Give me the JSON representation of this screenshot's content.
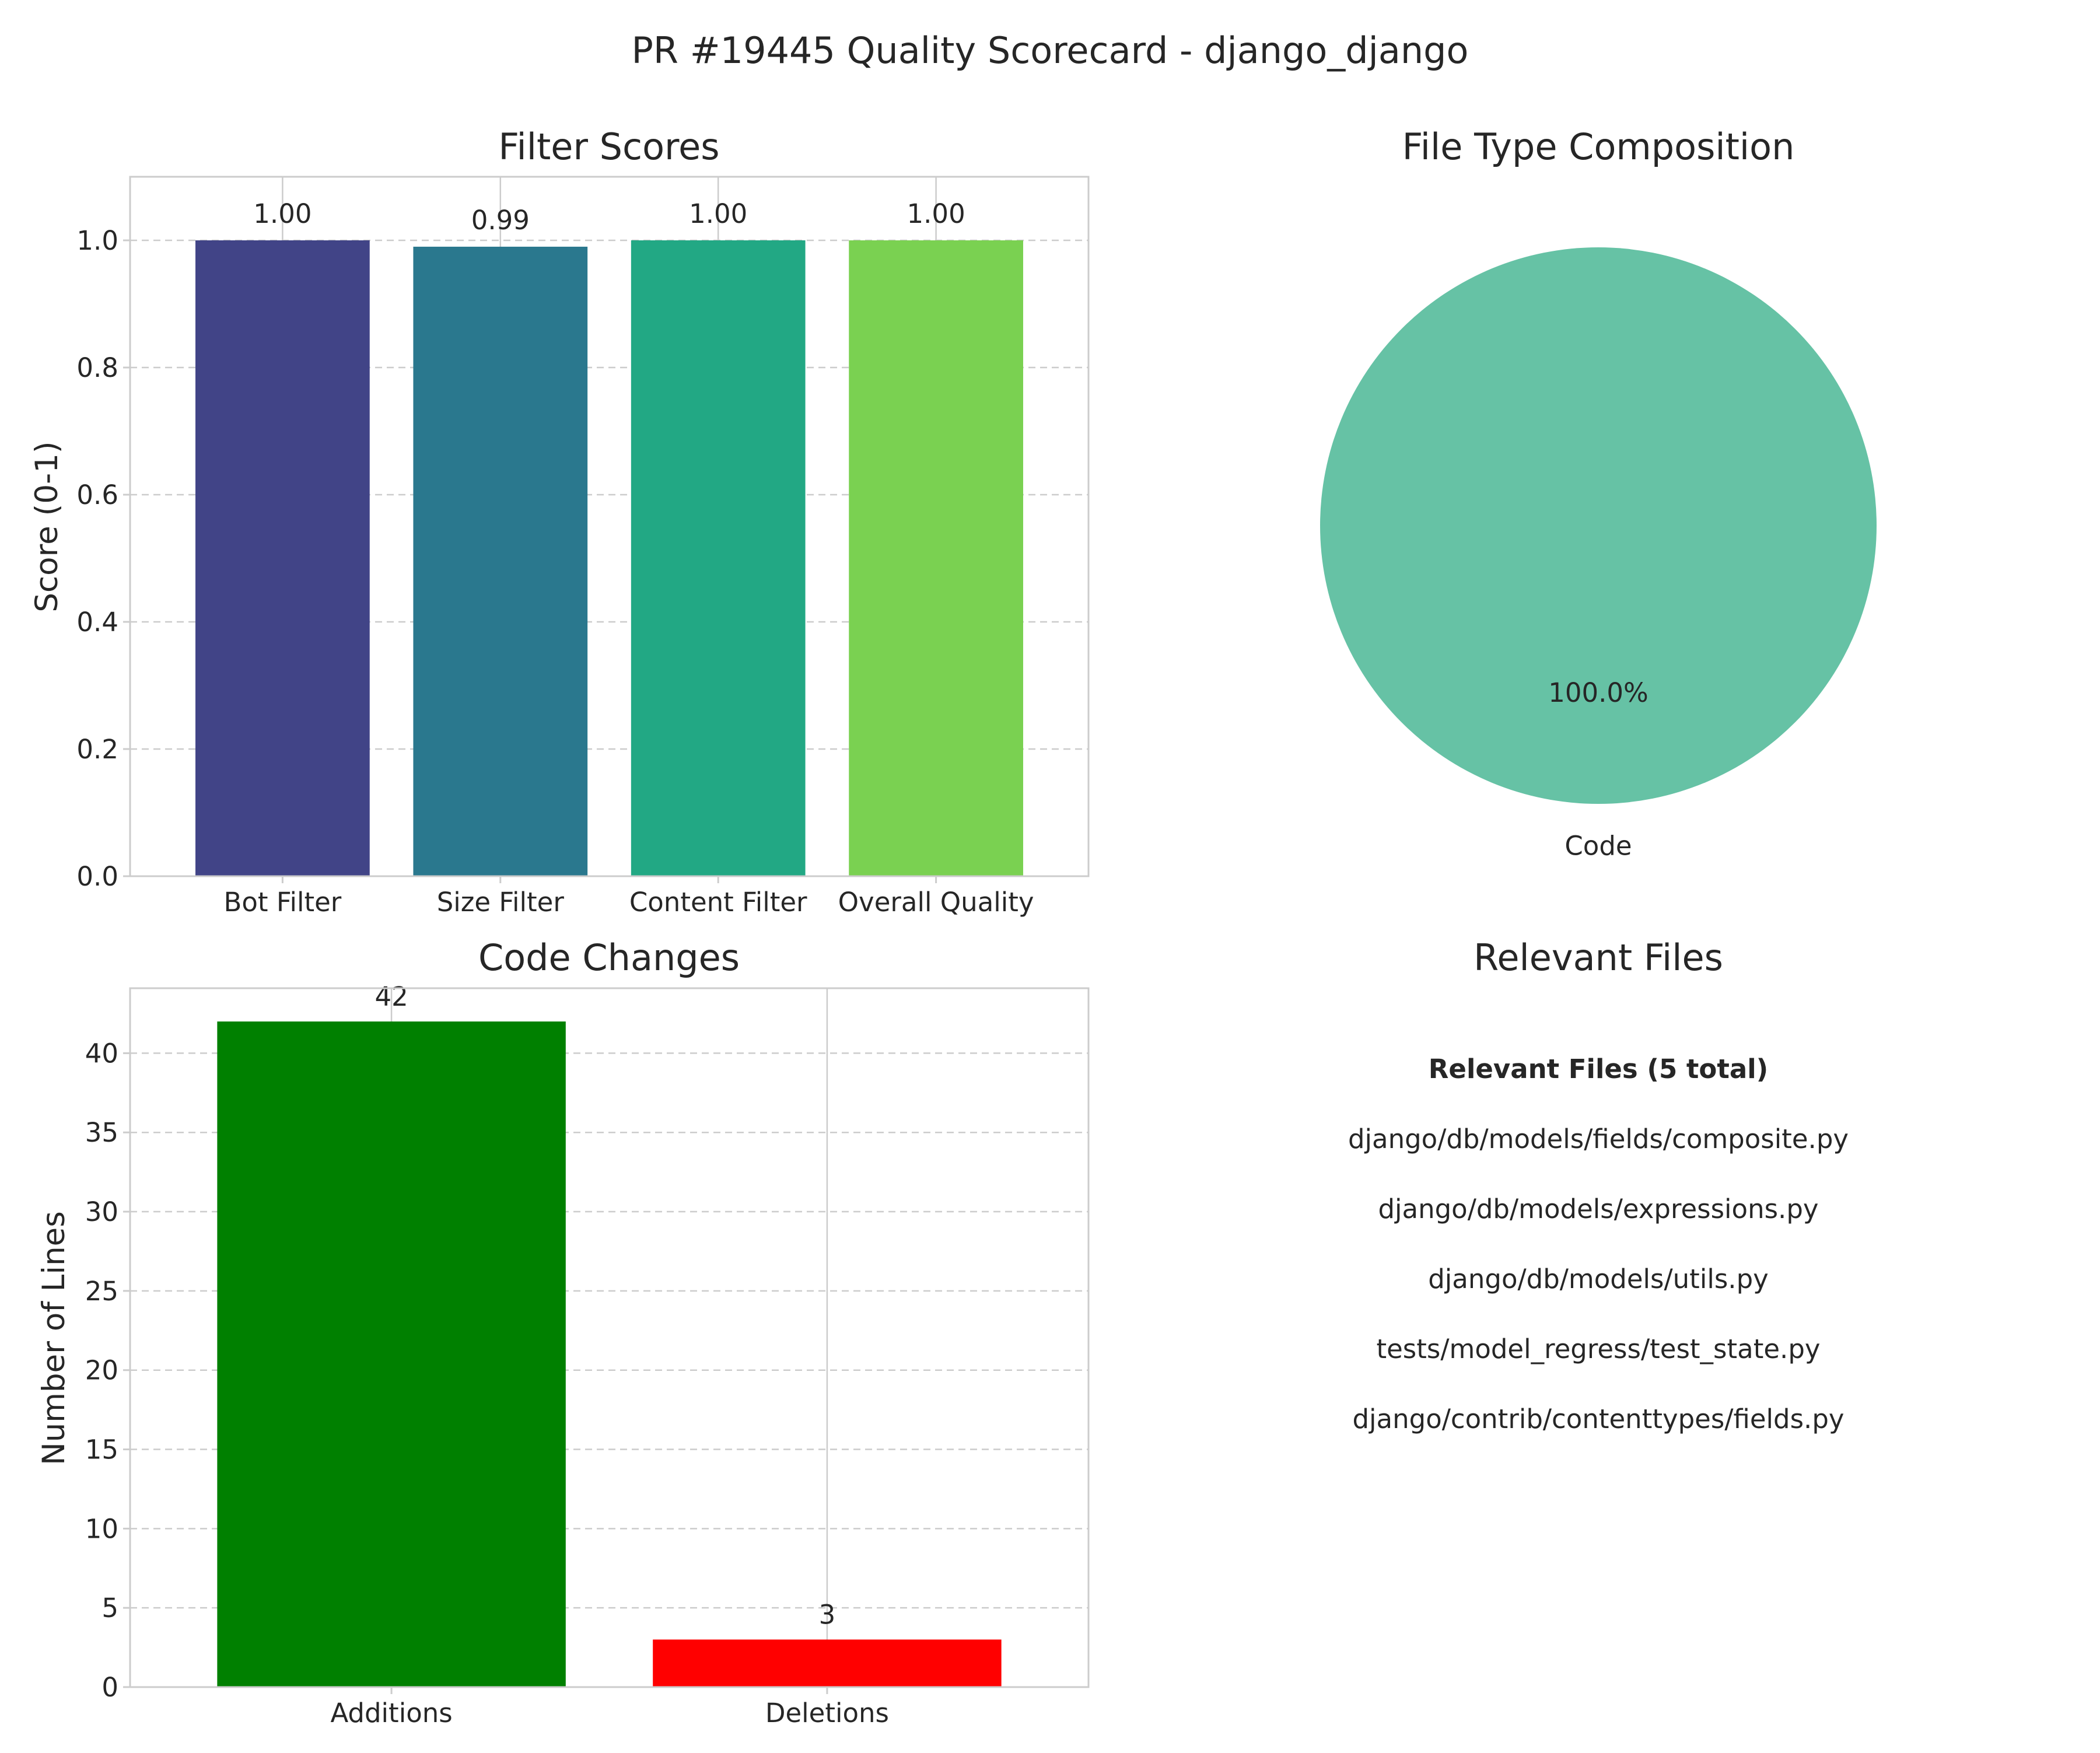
{
  "title": "PR #19445 Quality Scorecard - django_django",
  "chart_data": [
    {
      "type": "bar",
      "title": "Filter Scores",
      "ylabel": "Score (0-1)",
      "xlabel": "",
      "categories": [
        "Bot Filter",
        "Size Filter",
        "Content Filter",
        "Overall Quality"
      ],
      "values": [
        1.0,
        0.99,
        1.0,
        1.0
      ],
      "value_labels": [
        "1.00",
        "0.99",
        "1.00",
        "1.00"
      ],
      "colors": [
        "#414487",
        "#2a788e",
        "#22a884",
        "#7ad151"
      ],
      "ylim": [
        0,
        1.1
      ],
      "yticks": [
        0.0,
        0.2,
        0.4,
        0.6,
        0.8,
        1.0
      ],
      "ytick_labels": [
        "0.0",
        "0.2",
        "0.4",
        "0.6",
        "0.8",
        "1.0"
      ],
      "grid": "dashed horizontal"
    },
    {
      "type": "pie",
      "title": "File Type Composition",
      "labels": [
        "Code"
      ],
      "values": [
        100.0
      ],
      "pct_labels": [
        "100.0%"
      ],
      "colors": [
        "#66c2a5"
      ]
    },
    {
      "type": "bar",
      "title": "Code Changes",
      "ylabel": "Number of Lines",
      "xlabel": "",
      "categories": [
        "Additions",
        "Deletions"
      ],
      "values": [
        42,
        3
      ],
      "value_labels": [
        "42",
        "3"
      ],
      "colors": [
        "#008000",
        "#ff0000"
      ],
      "ylim": [
        0,
        44.1
      ],
      "yticks": [
        0,
        5,
        10,
        15,
        20,
        25,
        30,
        35,
        40
      ],
      "ytick_labels": [
        "0",
        "5",
        "10",
        "15",
        "20",
        "25",
        "30",
        "35",
        "40"
      ],
      "grid": "dashed horizontal"
    }
  ],
  "relevant_files": {
    "title": "Relevant Files",
    "heading": "Relevant Files (5 total)",
    "files": [
      "django/db/models/fields/composite.py",
      "django/db/models/expressions.py",
      "django/db/models/utils.py",
      "tests/model_regress/test_state.py",
      "django/contrib/contenttypes/fields.py"
    ]
  }
}
